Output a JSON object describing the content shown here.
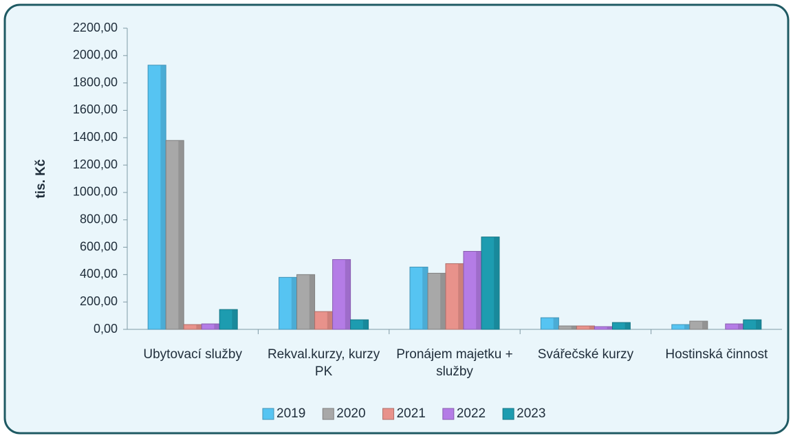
{
  "chart_data": {
    "type": "bar",
    "y_label": "tis. Kč",
    "categories": [
      "Ubytovací služby",
      "Rekval.kurzy, kurzy PK",
      "Pronájem majetku + služby",
      "Svářečské kurzy",
      "Hostinská činnost"
    ],
    "series": [
      {
        "name": "2019",
        "color": "#56c4f2",
        "values": [
          1930,
          380,
          455,
          85,
          35
        ]
      },
      {
        "name": "2020",
        "color": "#a8a8a8",
        "values": [
          1380,
          400,
          410,
          25,
          60
        ]
      },
      {
        "name": "2021",
        "color": "#e8928b",
        "values": [
          35,
          130,
          480,
          25,
          null
        ]
      },
      {
        "name": "2022",
        "color": "#b47ce6",
        "values": [
          40,
          510,
          570,
          20,
          40
        ]
      },
      {
        "name": "2023",
        "color": "#1d9cb0",
        "values": [
          145,
          70,
          675,
          50,
          70
        ]
      }
    ],
    "ylim": [
      0,
      2200
    ],
    "yticks": [
      {
        "value": 0,
        "label": "0,00"
      },
      {
        "value": 200,
        "label": "200,00"
      },
      {
        "value": 400,
        "label": "400,00"
      },
      {
        "value": 600,
        "label": "600,00"
      },
      {
        "value": 800,
        "label": "800,00"
      },
      {
        "value": 1000,
        "label": "1000,00"
      },
      {
        "value": 1200,
        "label": "1200,00"
      },
      {
        "value": 1400,
        "label": "1400,00"
      },
      {
        "value": 1600,
        "label": "1600,00"
      },
      {
        "value": 1800,
        "label": "1800,00"
      },
      {
        "value": 2000,
        "label": "2000,00"
      },
      {
        "value": 2200,
        "label": "2200,00"
      }
    ],
    "legend": "bottom"
  }
}
